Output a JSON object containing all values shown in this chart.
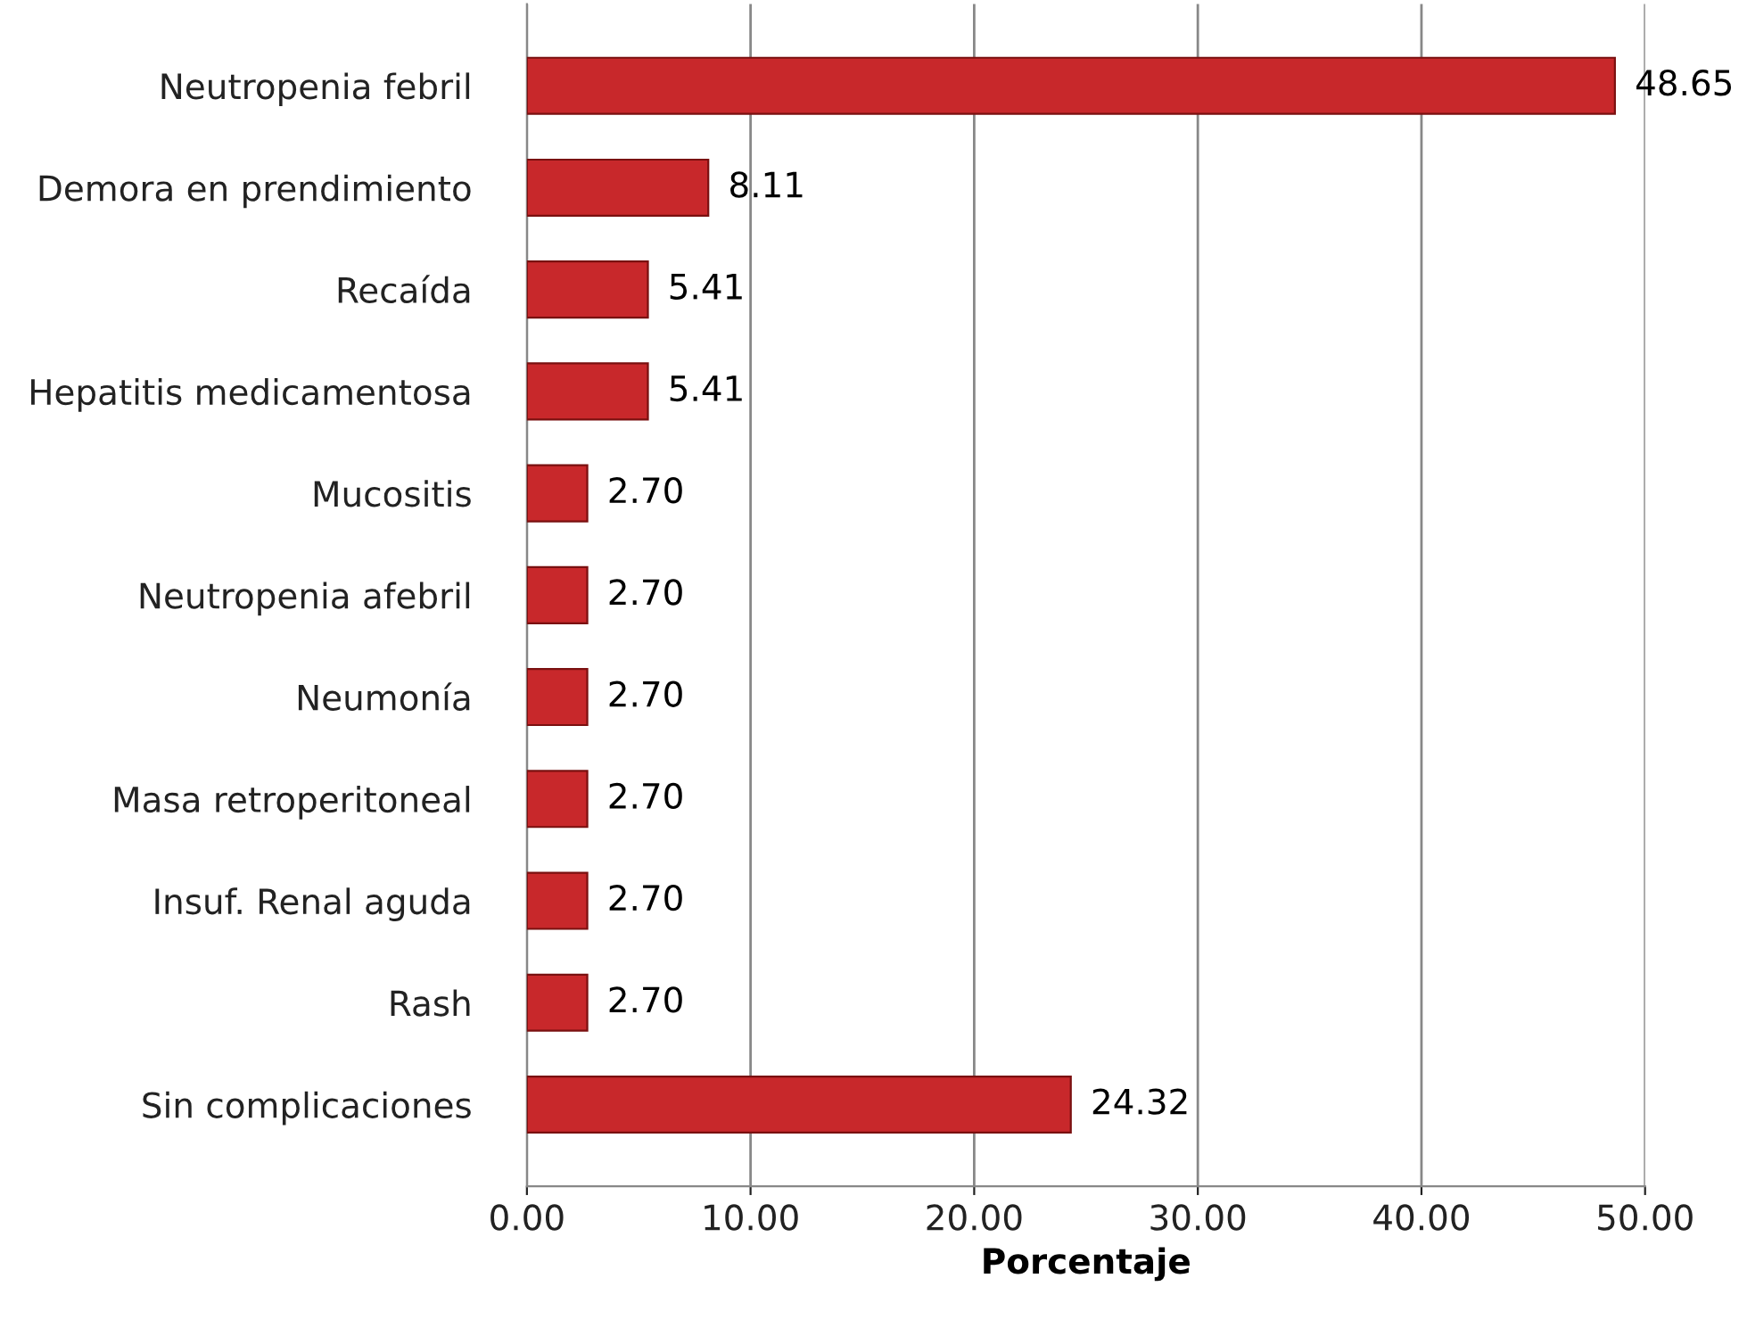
{
  "chart_data": {
    "type": "bar",
    "orientation": "horizontal",
    "xlabel": "Porcentaje",
    "categories": [
      "Neutropenia febril",
      "Demora en prendimiento",
      "Recaída",
      "Hepatitis medicamentosa",
      "Mucositis",
      "Neutropenia afebril",
      "Neumonía",
      "Masa retroperitoneal",
      "Insuf. Renal aguda",
      "Rash",
      "Sin complicaciones"
    ],
    "values": [
      48.65,
      8.11,
      5.41,
      5.41,
      2.7,
      2.7,
      2.7,
      2.7,
      2.7,
      2.7,
      24.32
    ],
    "value_labels": [
      "48.65",
      "8.11",
      "5.41",
      "5.41",
      "2.70",
      "2.70",
      "2.70",
      "2.70",
      "2.70",
      "2.70",
      "24.32"
    ],
    "color": "#c8282b",
    "xlim": [
      0,
      50
    ],
    "xticks": [
      {
        "value": 0,
        "label": "0.00"
      },
      {
        "value": 10,
        "label": "10.00"
      },
      {
        "value": 20,
        "label": "20.00"
      },
      {
        "value": 30,
        "label": "30.00"
      },
      {
        "value": 40,
        "label": "40.00"
      },
      {
        "value": 50,
        "label": "50.00"
      }
    ],
    "grid": "x",
    "legend": false
  }
}
